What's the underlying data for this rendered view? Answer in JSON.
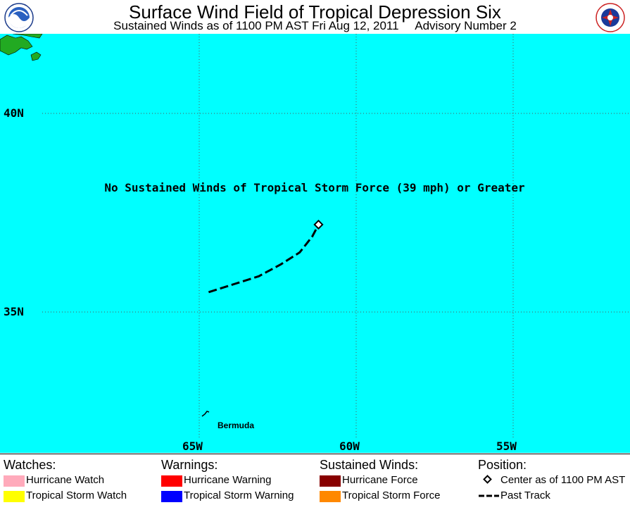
{
  "header": {
    "title": "Surface Wind Field of Tropical Depression Six",
    "subtitle_left": "Sustained Winds as of 1100 PM AST Fri Aug 12, 2011",
    "subtitle_right": "Advisory Number 2"
  },
  "map": {
    "ocean_color": "#00ffff",
    "land_color": "#22aa22",
    "lat_labels": [
      "40N",
      "35N"
    ],
    "lon_labels": [
      "65W",
      "60W",
      "55W"
    ],
    "notice": "No Sustained Winds of Tropical Storm Force (39 mph) or Greater",
    "place_label": "Bermuda",
    "storm_center": {
      "lat": 37.2,
      "lon": 61.2
    },
    "past_track": [
      {
        "lat": 35.5,
        "lon": 64.7
      },
      {
        "lat": 35.7,
        "lon": 63.9
      },
      {
        "lat": 35.9,
        "lon": 63.1
      },
      {
        "lat": 36.2,
        "lon": 62.4
      },
      {
        "lat": 36.5,
        "lon": 61.8
      },
      {
        "lat": 36.9,
        "lon": 61.4
      },
      {
        "lat": 37.2,
        "lon": 61.2
      }
    ]
  },
  "legend": {
    "watches": {
      "heading": "Watches:",
      "items": [
        {
          "label": "Hurricane Watch",
          "color": "#ffaabb"
        },
        {
          "label": "Tropical Storm Watch",
          "color": "#ffff00"
        }
      ]
    },
    "warnings": {
      "heading": "Warnings:",
      "items": [
        {
          "label": "Hurricane Warning",
          "color": "#ff0000"
        },
        {
          "label": "Tropical Storm Warning",
          "color": "#0000ff"
        }
      ]
    },
    "winds": {
      "heading": "Sustained Winds:",
      "items": [
        {
          "label": "Hurricane Force",
          "color": "#880000"
        },
        {
          "label": "Tropical Storm Force",
          "color": "#ff8800"
        }
      ]
    },
    "position": {
      "heading": "Position:",
      "center_label": "Center as of 1100 PM AST",
      "track_label": "Past Track"
    }
  }
}
